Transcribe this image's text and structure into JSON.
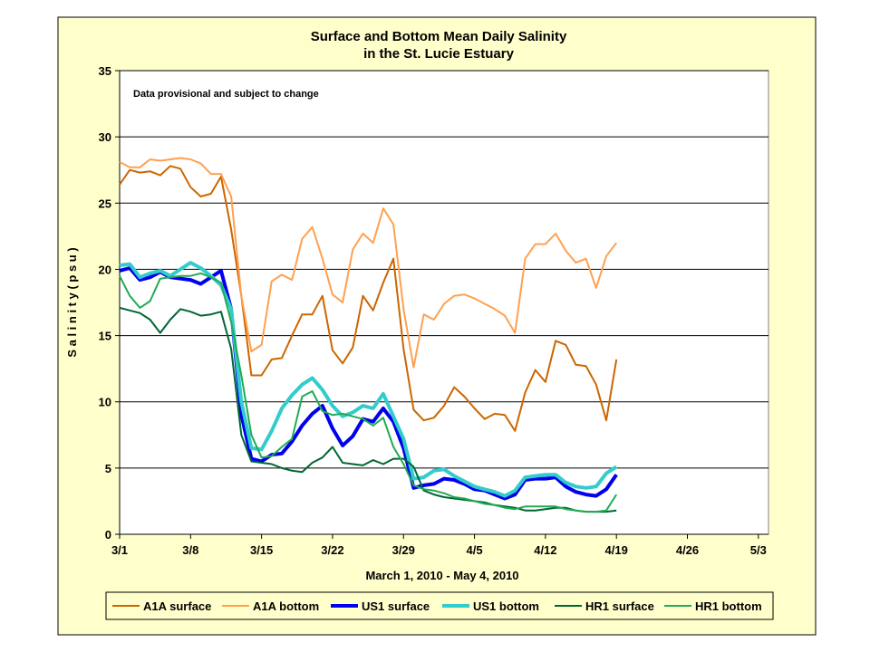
{
  "chart_data": {
    "type": "line",
    "title_line1": "Surface and Bottom Mean Daily Salinity",
    "title_line2": "in the St. Lucie Estuary",
    "annotation": "Data provisional and subject to change",
    "xlabel": "March 1, 2010 - May 4, 2010",
    "ylabel": "S a l i n i t y  ( p s u )",
    "ylim": [
      0,
      35
    ],
    "yticks": [
      0,
      5,
      10,
      15,
      20,
      25,
      30,
      35
    ],
    "x_tick_labels": [
      "3/1",
      "3/8",
      "3/15",
      "3/22",
      "3/29",
      "4/5",
      "4/12",
      "4/19",
      "4/26",
      "5/3"
    ],
    "x_start": "2010-03-01",
    "x_end": "2010-05-04",
    "grid": "horizontal",
    "legend_position": "bottom",
    "background_color": "#FFFFCC",
    "series": [
      {
        "name": "A1A surface",
        "color": "#CC6600",
        "width": 2,
        "values": [
          26.4,
          27.5,
          27.3,
          27.4,
          27.1,
          27.8,
          27.6,
          26.2,
          25.5,
          25.7,
          27.0,
          23.0,
          18.0,
          12.0,
          12.0,
          13.2,
          13.3,
          15.0,
          16.6,
          16.6,
          18.0,
          13.9,
          12.9,
          14.1,
          18.0,
          16.9,
          19.0,
          20.8,
          14.0,
          9.4,
          8.6,
          8.8,
          9.7,
          11.1,
          10.4,
          9.5,
          8.7,
          9.1,
          9.0,
          7.8,
          10.7,
          12.4,
          11.5,
          14.6,
          14.3,
          12.8,
          12.7,
          11.3,
          8.6,
          13.2
        ]
      },
      {
        "name": "A1A bottom",
        "color": "#FFA050",
        "width": 2,
        "values": [
          28.1,
          27.7,
          27.7,
          28.3,
          28.2,
          28.3,
          28.4,
          28.3,
          28.0,
          27.2,
          27.2,
          25.5,
          18.0,
          13.8,
          14.3,
          19.1,
          19.6,
          19.2,
          22.3,
          23.2,
          20.8,
          18.1,
          17.5,
          21.5,
          22.7,
          22.0,
          24.6,
          23.4,
          17.0,
          12.6,
          16.6,
          16.2,
          17.4,
          18.0,
          18.1,
          17.8,
          17.4,
          17.0,
          16.5,
          15.2,
          20.8,
          21.9,
          21.9,
          22.7,
          21.4,
          20.5,
          20.8,
          18.6,
          21.0,
          22.0
        ]
      },
      {
        "name": "US1 surface",
        "color": "#0000EE",
        "width": 4,
        "values": [
          19.9,
          20.1,
          19.2,
          19.4,
          19.8,
          19.4,
          19.3,
          19.2,
          18.9,
          19.4,
          19.9,
          17.0,
          9.0,
          5.7,
          5.5,
          6.0,
          6.1,
          7.0,
          8.2,
          9.1,
          9.7,
          8.0,
          6.7,
          7.4,
          8.7,
          8.5,
          9.5,
          8.5,
          6.5,
          3.5,
          3.7,
          3.8,
          4.2,
          4.1,
          3.8,
          3.4,
          3.3,
          3.0,
          2.7,
          3.0,
          4.1,
          4.2,
          4.2,
          4.3,
          3.6,
          3.2,
          3.0,
          2.9,
          3.4,
          4.5
        ]
      },
      {
        "name": "US1 bottom",
        "color": "#33CCCC",
        "width": 4,
        "values": [
          20.3,
          20.4,
          19.4,
          19.7,
          19.9,
          19.5,
          20.0,
          20.5,
          20.1,
          19.5,
          18.8,
          17.0,
          10.0,
          6.5,
          6.4,
          7.8,
          9.5,
          10.5,
          11.3,
          11.8,
          10.9,
          9.7,
          8.9,
          9.2,
          9.7,
          9.5,
          10.6,
          8.9,
          7.2,
          4.2,
          4.3,
          4.8,
          4.9,
          4.4,
          4.0,
          3.6,
          3.4,
          3.2,
          2.9,
          3.3,
          4.3,
          4.4,
          4.5,
          4.5,
          3.9,
          3.6,
          3.5,
          3.6,
          4.6,
          5.1
        ]
      },
      {
        "name": "HR1 surface",
        "color": "#006633",
        "width": 2,
        "values": [
          17.1,
          16.9,
          16.7,
          16.2,
          15.2,
          16.2,
          17.0,
          16.8,
          16.5,
          16.6,
          16.8,
          14.0,
          7.5,
          5.5,
          5.4,
          5.3,
          5.0,
          4.8,
          4.7,
          5.4,
          5.8,
          6.6,
          5.4,
          5.3,
          5.2,
          5.6,
          5.3,
          5.7,
          5.7,
          5.1,
          3.3,
          3.0,
          2.8,
          2.7,
          2.6,
          2.5,
          2.4,
          2.2,
          2.1,
          2.0,
          1.8,
          1.8,
          1.9,
          2.0,
          2.0,
          1.8,
          1.7,
          1.7,
          1.7,
          1.8
        ]
      },
      {
        "name": "HR1 bottom",
        "color": "#22AA55",
        "width": 2,
        "values": [
          19.5,
          18.0,
          17.1,
          17.6,
          19.3,
          19.4,
          19.5,
          19.5,
          19.7,
          19.4,
          19.0,
          16.0,
          12.0,
          7.5,
          5.8,
          5.9,
          6.6,
          7.2,
          10.4,
          10.8,
          9.3,
          9.0,
          9.1,
          8.9,
          8.7,
          8.2,
          8.8,
          6.6,
          5.3,
          3.7,
          3.4,
          3.3,
          3.1,
          2.8,
          2.7,
          2.5,
          2.3,
          2.2,
          2.0,
          1.9,
          2.1,
          2.1,
          2.1,
          2.1,
          1.9,
          1.8,
          1.7,
          1.7,
          1.8,
          3.0
        ]
      }
    ]
  }
}
